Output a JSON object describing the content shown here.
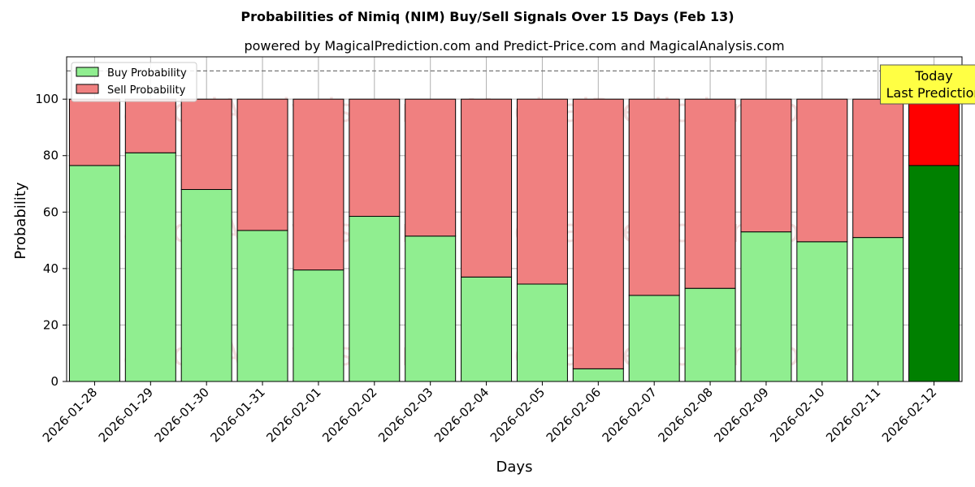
{
  "chart_data": {
    "type": "bar",
    "stacked": true,
    "title": "Probabilities of Nimiq (NIM) Buy/Sell Signals Over 15 Days (Feb 13)",
    "subtitle": "powered by MagicalPrediction.com and Predict-Price.com and MagicalAnalysis.com",
    "xlabel": "Days",
    "ylabel": "Probability",
    "ylim": [
      0,
      115
    ],
    "yticks": [
      0,
      20,
      40,
      60,
      80,
      100
    ],
    "reference_line": 110,
    "grid": true,
    "legend_position": "top-left",
    "categories": [
      "2026-01-28",
      "2026-01-29",
      "2026-01-30",
      "2026-01-31",
      "2026-02-01",
      "2026-02-02",
      "2026-02-03",
      "2026-02-04",
      "2026-02-05",
      "2026-02-06",
      "2026-02-07",
      "2026-02-08",
      "2026-02-09",
      "2026-02-10",
      "2026-02-11",
      "2026-02-12"
    ],
    "series": [
      {
        "name": "Buy Probability",
        "color": "#90ee90",
        "highlight_color": "#008000",
        "values": [
          76.5,
          81,
          68,
          53.5,
          39.5,
          58.5,
          51.5,
          37,
          34.5,
          4.5,
          30.5,
          33,
          53,
          49.5,
          51,
          76.5
        ]
      },
      {
        "name": "Sell Probability",
        "color": "#f08080",
        "highlight_color": "#ff0000",
        "values": [
          23.5,
          19,
          32,
          46.5,
          60.5,
          41.5,
          48.5,
          63,
          65.5,
          95.5,
          69.5,
          67,
          47,
          50.5,
          49,
          23.5
        ]
      }
    ],
    "annotation": {
      "lines": [
        "Today",
        "Last Prediction"
      ],
      "fill": "#ffff44",
      "target_category": "2026-02-12"
    },
    "watermarks": [
      "MagicalAnalysis.com",
      "MagicalPrediction.com"
    ]
  }
}
